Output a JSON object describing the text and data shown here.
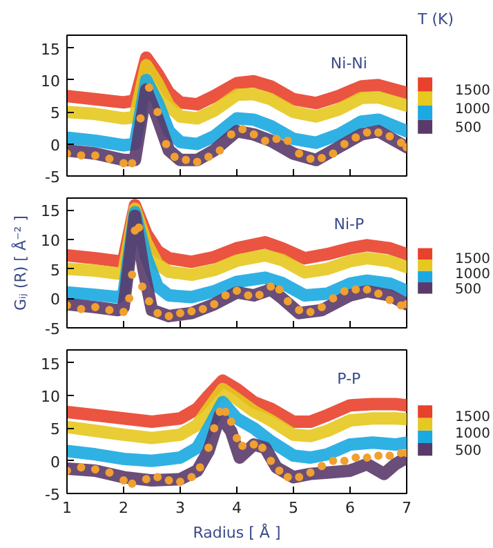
{
  "chart_data": [
    {
      "type": "line",
      "title": "Ni-Ni",
      "clabel": "T (K)",
      "clim": [
        300,
        1800
      ],
      "cticks": [
        500,
        1000,
        1500
      ],
      "xlim": [
        1,
        7
      ],
      "ylim": [
        -5,
        17
      ],
      "xticks": [
        1,
        2,
        3,
        4,
        5,
        6,
        7
      ],
      "yticks": [
        -5,
        0,
        5,
        10,
        15
      ],
      "tick_labels": "y",
      "grid": false,
      "line_style": "solid",
      "series": [
        {
          "color": "#e8412c",
          "x": [
            1,
            1.5,
            2.0,
            2.2,
            2.4,
            2.6,
            2.8,
            3.0,
            3.3,
            3.6,
            4.0,
            4.3,
            4.6,
            5.0,
            5.4,
            5.8,
            6.2,
            6.5,
            7.0
          ],
          "values": [
            7.5,
            7,
            6.5,
            6.8,
            13.5,
            11,
            8,
            6.5,
            6.2,
            7.5,
            9.5,
            9.8,
            9,
            7,
            6.4,
            7.5,
            9,
            9.2,
            8
          ]
        },
        {
          "color": "#e6c81f",
          "x": [
            1,
            1.5,
            2.0,
            2.2,
            2.4,
            2.6,
            2.8,
            3.0,
            3.3,
            3.6,
            4.0,
            4.3,
            4.6,
            5.0,
            5.4,
            5.8,
            6.2,
            6.5,
            7.0
          ],
          "values": [
            5,
            4.7,
            4,
            4.2,
            12.3,
            9.5,
            6,
            4.3,
            4,
            5.2,
            7.7,
            7.8,
            7,
            5,
            4.3,
            5.4,
            7.2,
            7.3,
            6
          ]
        },
        {
          "color": "#1aa9e0",
          "x": [
            1,
            1.5,
            2.0,
            2.2,
            2.4,
            2.6,
            2.8,
            3.0,
            3.3,
            3.6,
            4.0,
            4.3,
            4.6,
            5.0,
            5.4,
            5.8,
            6.2,
            6.5,
            7.0
          ],
          "values": [
            1,
            0.5,
            -0.2,
            0,
            10,
            6.5,
            2,
            0.3,
            0,
            1.2,
            4,
            3.8,
            2.8,
            0.8,
            0.2,
            1.5,
            3.5,
            3.8,
            2
          ]
        },
        {
          "color": "#5a3a6a",
          "x": [
            1,
            1.5,
            2.0,
            2.2,
            2.4,
            2.6,
            2.8,
            3.0,
            3.3,
            3.6,
            4.0,
            4.3,
            4.6,
            5.0,
            5.4,
            5.8,
            6.2,
            6.5,
            7.0
          ],
          "values": [
            -1,
            -1.5,
            -2.5,
            -2.5,
            8.5,
            4,
            -1,
            -2.5,
            -2.5,
            -1,
            2,
            1.5,
            0.5,
            -1.5,
            -2.5,
            -0.5,
            1.5,
            2,
            -0.5
          ]
        },
        {
          "type": "scatter",
          "marker": "circle",
          "color": "#f0a030",
          "x": [
            1,
            1.25,
            1.5,
            1.75,
            2.0,
            2.15,
            2.3,
            2.45,
            2.6,
            2.75,
            2.9,
            3.1,
            3.3,
            3.5,
            3.7,
            3.9,
            4.1,
            4.3,
            4.5,
            4.7,
            4.9,
            5.1,
            5.3,
            5.5,
            5.7,
            5.9,
            6.1,
            6.3,
            6.5,
            6.7,
            6.9,
            7.0
          ],
          "values": [
            -1.5,
            -1.8,
            -1.8,
            -2.3,
            -3,
            -3,
            4,
            8.8,
            5,
            0,
            -2,
            -2.5,
            -2.8,
            -2,
            -1,
            1.5,
            2.3,
            1.5,
            0.5,
            0.8,
            0.5,
            -1.5,
            -2.3,
            -2.2,
            -1.5,
            0,
            1,
            1.8,
            1.8,
            1.2,
            0.2,
            -0.5
          ]
        }
      ]
    },
    {
      "type": "line",
      "title": "Ni-P",
      "ylabel": "Gᵢⱼ (R) [ Å⁻² ]",
      "clim": [
        300,
        1800
      ],
      "cticks": [
        500,
        1000,
        1500
      ],
      "xlim": [
        1,
        7
      ],
      "ylim": [
        -5,
        17
      ],
      "xticks": [
        1,
        2,
        3,
        4,
        5,
        6,
        7
      ],
      "yticks": [
        -5,
        0,
        5,
        10,
        15
      ],
      "tick_labels": "y",
      "grid": false,
      "line_style": "solid",
      "series": [
        {
          "color": "#e8412c",
          "x": [
            1,
            1.5,
            1.9,
            2.0,
            2.2,
            2.4,
            2.6,
            2.8,
            3.2,
            3.6,
            4.0,
            4.5,
            4.8,
            5.2,
            5.6,
            6.0,
            6.3,
            6.7,
            7.0
          ],
          "values": [
            7.3,
            6.8,
            6.3,
            6.6,
            15.8,
            11,
            8,
            6.8,
            6.2,
            7,
            8.5,
            9.5,
            8.5,
            6.8,
            7.5,
            8.5,
            9,
            8.5,
            7.5
          ]
        },
        {
          "color": "#e6c81f",
          "x": [
            1,
            1.5,
            1.9,
            2.0,
            2.2,
            2.4,
            2.6,
            2.8,
            3.2,
            3.6,
            4.0,
            4.5,
            4.8,
            5.2,
            5.6,
            6.0,
            6.3,
            6.7,
            7.0
          ],
          "values": [
            5,
            4.7,
            4.2,
            4.6,
            15.2,
            9.5,
            5.8,
            4.5,
            4,
            4.8,
            6.4,
            7.3,
            6.5,
            4.4,
            5,
            6.3,
            6.8,
            6.3,
            5.3
          ]
        },
        {
          "color": "#1aa9e0",
          "x": [
            1,
            1.5,
            1.9,
            2.0,
            2.2,
            2.4,
            2.6,
            2.8,
            3.2,
            3.6,
            4.0,
            4.5,
            4.8,
            5.2,
            5.6,
            6.0,
            6.3,
            6.7,
            7.0
          ],
          "values": [
            1,
            0.6,
            0.2,
            0.8,
            14.6,
            7,
            2,
            0.5,
            0.2,
            1.2,
            2.8,
            3.5,
            2.6,
            0.5,
            0.8,
            2.5,
            3,
            2.5,
            1.3
          ]
        },
        {
          "color": "#5a3a6a",
          "x": [
            1,
            1.5,
            1.9,
            2.0,
            2.2,
            2.35,
            2.5,
            2.8,
            3.2,
            3.6,
            4.0,
            4.3,
            4.6,
            4.8,
            5.1,
            5.5,
            6.0,
            6.3,
            6.7,
            7.0
          ],
          "values": [
            -1,
            -1.5,
            -2,
            -1.5,
            14,
            5,
            -2,
            -3,
            -2.5,
            -1,
            1,
            0.5,
            1.5,
            0,
            -2.5,
            -2,
            0.5,
            1.2,
            0.5,
            -1
          ]
        },
        {
          "type": "scatter",
          "marker": "circle",
          "color": "#f0a030",
          "x": [
            1,
            1.25,
            1.5,
            1.75,
            2.0,
            2.1,
            2.15,
            2.2,
            2.27,
            2.33,
            2.45,
            2.6,
            2.8,
            3.0,
            3.2,
            3.4,
            3.6,
            3.8,
            4.0,
            4.2,
            4.4,
            4.6,
            4.75,
            4.9,
            5.1,
            5.3,
            5.5,
            5.7,
            5.9,
            6.1,
            6.3,
            6.5,
            6.7,
            6.9,
            7.0
          ],
          "values": [
            -1.2,
            -1.8,
            -1.5,
            -2,
            -2.3,
            0,
            4,
            11.5,
            12,
            2,
            -0.5,
            -2.5,
            -3,
            -2.5,
            -2.2,
            -1.8,
            -1,
            0.5,
            1.3,
            0.5,
            0.6,
            2,
            1.5,
            -0.5,
            -2,
            -2.3,
            -1.5,
            0,
            1.2,
            1.5,
            1.5,
            0.8,
            -0.3,
            -1.2,
            -1
          ]
        }
      ]
    },
    {
      "type": "line",
      "title": "P-P",
      "xlabel": "Radius [ Å ]",
      "clim": [
        300,
        1800
      ],
      "cticks": [
        500,
        1000,
        1500
      ],
      "xlim": [
        1,
        7
      ],
      "ylim": [
        -5,
        17
      ],
      "xticks": [
        1,
        2,
        3,
        4,
        5,
        6,
        7
      ],
      "yticks": [
        -5,
        0,
        5,
        10,
        15
      ],
      "grid": false,
      "line_style": "solid",
      "series": [
        {
          "color": "#e8412c",
          "x": [
            1,
            1.5,
            2,
            2.5,
            3,
            3.3,
            3.5,
            3.75,
            4.0,
            4.3,
            4.6,
            5,
            5.3,
            5.6,
            6,
            6.4,
            6.8,
            7
          ],
          "values": [
            7.5,
            7,
            6.5,
            6,
            6.5,
            8,
            10,
            12.3,
            11,
            9,
            8,
            6,
            6,
            7,
            8.5,
            8.7,
            8.7,
            8.5
          ]
        },
        {
          "color": "#e6c81f",
          "x": [
            1,
            1.5,
            2,
            2.5,
            3,
            3.3,
            3.5,
            3.75,
            4.0,
            4.3,
            4.6,
            5,
            5.3,
            5.6,
            6,
            6.4,
            6.8,
            7
          ],
          "values": [
            5.2,
            4.6,
            4,
            3.5,
            4,
            5.5,
            8,
            11,
            9.5,
            7.6,
            6.2,
            4,
            3.8,
            4.6,
            6.2,
            6.5,
            6.5,
            6.4
          ]
        },
        {
          "color": "#1aa9e0",
          "x": [
            1,
            1.5,
            2,
            2.5,
            3,
            3.3,
            3.5,
            3.75,
            4.0,
            4.3,
            4.6,
            5,
            5.3,
            5.6,
            6,
            6.4,
            6.8,
            7
          ],
          "values": [
            1.5,
            1,
            0.3,
            0,
            0.5,
            2,
            5,
            9,
            6.5,
            5,
            3,
            0.8,
            0.5,
            1,
            2.5,
            2.8,
            2.5,
            2.8
          ]
        },
        {
          "color": "#5a3a6a",
          "x": [
            1,
            1.5,
            2,
            2.5,
            3,
            3.3,
            3.5,
            3.7,
            3.9,
            4.05,
            4.3,
            4.5,
            4.7,
            5,
            5.3,
            5.6,
            6,
            6.3,
            6.6,
            6.8,
            7
          ],
          "values": [
            -1.2,
            -1.5,
            -2.5,
            -3,
            -2.8,
            -1.5,
            1.5,
            7,
            4.5,
            0.5,
            2.5,
            2,
            -1,
            -2.5,
            -2,
            -1.8,
            -1.5,
            -0.5,
            -2,
            -0.5,
            0.5
          ]
        },
        {
          "type": "scatter",
          "marker": "circle",
          "color": "#f0a030",
          "x": [
            1,
            1.25,
            1.5,
            1.75,
            2.0,
            2.15,
            2.4,
            2.6,
            2.8,
            3.0,
            3.2,
            3.35,
            3.5,
            3.6,
            3.7,
            3.8,
            3.9,
            4.0,
            4.1,
            4.3,
            4.45,
            4.6,
            4.75,
            4.9,
            5.1,
            5.3,
            5.5,
            5.7,
            5.9,
            6.1,
            6.3,
            6.5,
            6.7,
            6.9,
            7.0
          ],
          "values": [
            -1.5,
            -1,
            -1.3,
            -1.8,
            -3,
            -3.5,
            -2.8,
            -2.5,
            -3,
            -3.2,
            -2.5,
            -1,
            2,
            5,
            7.5,
            7.5,
            6,
            3.5,
            2.3,
            2.5,
            2,
            0,
            -1.5,
            -2.5,
            -2.5,
            -1.8,
            -0.8,
            0,
            0,
            0.5,
            0.5,
            0.8,
            0.8,
            1.2,
            1.2
          ]
        }
      ]
    }
  ]
}
